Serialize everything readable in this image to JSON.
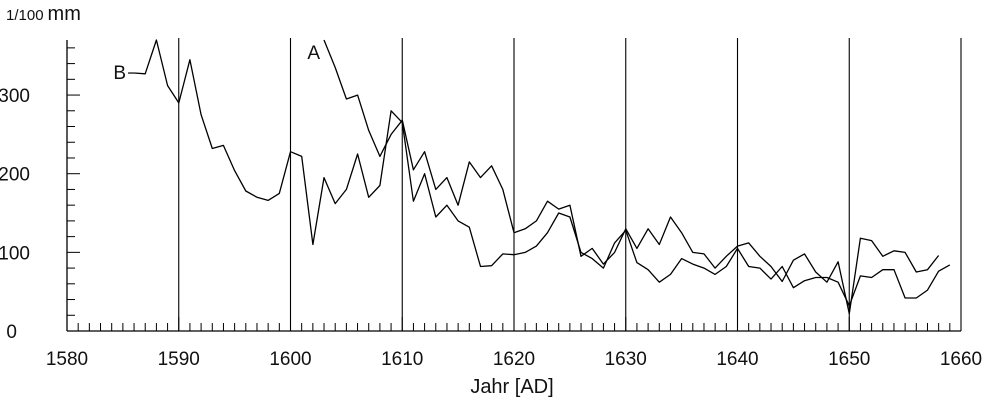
{
  "chart_data": {
    "type": "line",
    "ylabel_prefix": "1/100",
    "ylabel_unit": "mm",
    "xlabel": "Jahr [AD]",
    "xlim": [
      1580,
      1660
    ],
    "ylim": [
      0,
      370
    ],
    "x_ticks": [
      1580,
      1590,
      1600,
      1610,
      1620,
      1630,
      1640,
      1650,
      1660
    ],
    "y_ticks": [
      0,
      100,
      200,
      300
    ],
    "x_gridlines": [
      1590,
      1600,
      1610,
      1620,
      1630,
      1640,
      1650,
      1660
    ],
    "grid": "vertical",
    "series": [
      {
        "name": "A",
        "x": [
          1603,
          1604,
          1605,
          1606,
          1607,
          1608,
          1609,
          1610,
          1611,
          1612,
          1613,
          1614,
          1615,
          1616,
          1617,
          1618,
          1619,
          1620,
          1621,
          1622,
          1623,
          1624,
          1625,
          1626,
          1627,
          1628,
          1629,
          1630,
          1631,
          1632,
          1633,
          1634,
          1635,
          1636,
          1637,
          1638,
          1639,
          1640,
          1641,
          1642,
          1643,
          1644,
          1645,
          1646,
          1647,
          1648,
          1649,
          1650,
          1651,
          1652,
          1653,
          1654,
          1655,
          1656,
          1657,
          1658
        ],
        "values": [
          370,
          335,
          295,
          300,
          255,
          222,
          250,
          268,
          205,
          228,
          180,
          195,
          160,
          215,
          195,
          210,
          180,
          125,
          130,
          140,
          165,
          155,
          160,
          95,
          105,
          85,
          100,
          130,
          105,
          130,
          110,
          145,
          125,
          100,
          98,
          80,
          95,
          108,
          112,
          95,
          82,
          63,
          90,
          98,
          75,
          62,
          88,
          22,
          118,
          115,
          95,
          102,
          100,
          75,
          78,
          96
        ]
      },
      {
        "name": "B",
        "x": [
          1586,
          1587,
          1588,
          1589,
          1590,
          1591,
          1592,
          1593,
          1594,
          1595,
          1596,
          1597,
          1598,
          1599,
          1600,
          1601,
          1602,
          1603,
          1604,
          1605,
          1606,
          1607,
          1608,
          1609,
          1610,
          1611,
          1612,
          1613,
          1614,
          1615,
          1616,
          1617,
          1618,
          1619,
          1620,
          1621,
          1622,
          1623,
          1624,
          1625,
          1626,
          1627,
          1628,
          1629,
          1630,
          1631,
          1632,
          1633,
          1634,
          1635,
          1636,
          1637,
          1638,
          1639,
          1640,
          1641,
          1642,
          1643,
          1644,
          1645,
          1646,
          1647,
          1648,
          1649,
          1650,
          1651,
          1652,
          1653,
          1654,
          1655,
          1656,
          1657,
          1658,
          1659
        ],
        "values": [
          328,
          327,
          370,
          312,
          290,
          345,
          275,
          232,
          236,
          204,
          178,
          170,
          166,
          175,
          228,
          222,
          110,
          195,
          162,
          180,
          225,
          170,
          185,
          280,
          265,
          165,
          200,
          145,
          160,
          140,
          132,
          82,
          83,
          98,
          97,
          100,
          108,
          125,
          150,
          145,
          100,
          92,
          80,
          112,
          128,
          87,
          78,
          62,
          72,
          92,
          85,
          80,
          72,
          82,
          105,
          82,
          80,
          66,
          82,
          55,
          64,
          68,
          68,
          62,
          32,
          70,
          68,
          78,
          78,
          42,
          42,
          52,
          76,
          84
        ]
      }
    ]
  }
}
